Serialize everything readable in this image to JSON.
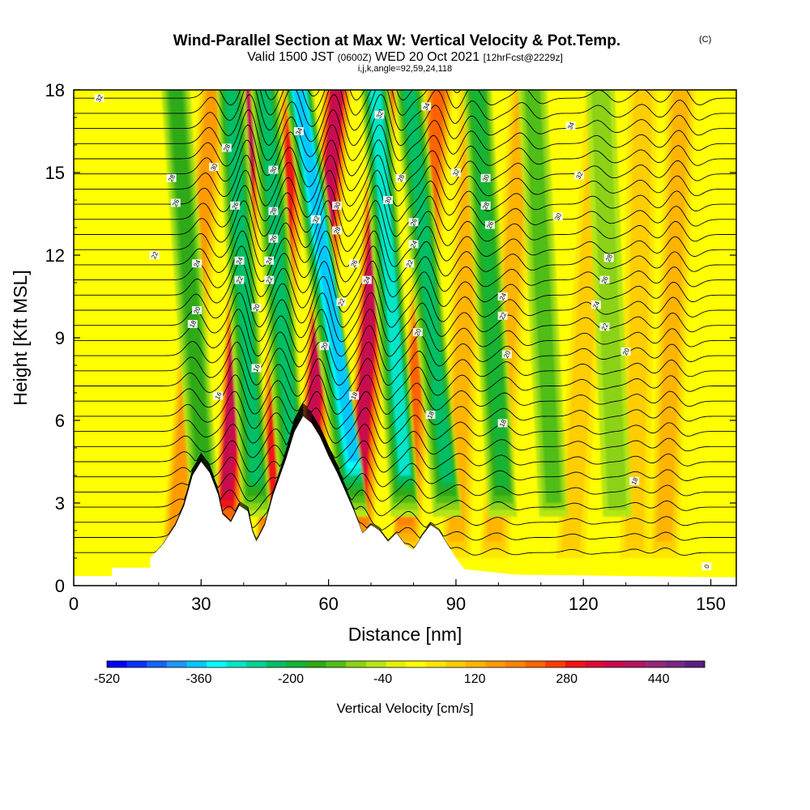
{
  "chart_data": {
    "type": "heatmap",
    "title": "Wind-Parallel Section at Max W: Vertical Velocity & Pot.Temp.",
    "title_mark": "(C)",
    "subtitle_main": "Valid 1500 JST",
    "subtitle_utc": "(0600Z)",
    "subtitle_date": "WED 20 Oct 2021",
    "subtitle_fcst": "[12hrFcst@2229z]",
    "subtitle2": "i,j,k,angle=92,59,24,118",
    "xlabel": "Distance [nm]",
    "ylabel": "Height [Kft MSL]",
    "xlim": [
      0,
      156
    ],
    "ylim": [
      0,
      18
    ],
    "xticks": [
      "0",
      "30",
      "60",
      "90",
      "120",
      "150"
    ],
    "yticks": [
      "0",
      "3",
      "6",
      "9",
      "12",
      "15",
      "18"
    ],
    "colorbar": {
      "label": "Vertical Velocity [cm/s]",
      "min": -520,
      "max": 520,
      "step": 40,
      "tick_labels": [
        "-520",
        "-360",
        "-200",
        "-40",
        "120",
        "280",
        "440"
      ],
      "colors": [
        "#0000ff",
        "#0a32ff",
        "#1464ff",
        "#1e96ff",
        "#00c8ff",
        "#00ffff",
        "#00e6c8",
        "#00d296",
        "#00be64",
        "#14b432",
        "#2daa14",
        "#50be14",
        "#8cd214",
        "#b4e614",
        "#e6f000",
        "#ffff00",
        "#ffe600",
        "#ffcd00",
        "#ffb400",
        "#ff9b00",
        "#ff8200",
        "#ff6400",
        "#ff3c00",
        "#f01414",
        "#dc0a32",
        "#c80a50",
        "#b41464",
        "#962878",
        "#782882",
        "#5a1e82"
      ]
    },
    "terrain": [
      [
        0,
        0.35
      ],
      [
        9,
        0.35
      ],
      [
        9,
        0.65
      ],
      [
        18,
        0.65
      ],
      [
        18,
        1.0
      ],
      [
        21,
        1.5
      ],
      [
        24,
        2.2
      ],
      [
        26,
        2.9
      ],
      [
        28,
        4.0
      ],
      [
        30,
        4.5
      ],
      [
        32,
        4.1
      ],
      [
        34,
        3.3
      ],
      [
        35,
        2.6
      ],
      [
        37,
        2.3
      ],
      [
        39,
        2.9
      ],
      [
        41,
        2.7
      ],
      [
        42,
        2.0
      ],
      [
        43,
        1.6
      ],
      [
        45,
        2.2
      ],
      [
        47,
        3.3
      ],
      [
        50,
        4.6
      ],
      [
        52,
        5.6
      ],
      [
        54,
        6.15
      ],
      [
        56,
        5.9
      ],
      [
        58,
        5.4
      ],
      [
        60,
        4.7
      ],
      [
        62,
        4.1
      ],
      [
        64,
        3.4
      ],
      [
        66,
        2.7
      ],
      [
        68,
        1.9
      ],
      [
        70,
        2.2
      ],
      [
        72,
        2.0
      ],
      [
        74,
        1.6
      ],
      [
        76,
        1.9
      ],
      [
        78,
        1.5
      ],
      [
        80,
        1.3
      ],
      [
        82,
        1.8
      ],
      [
        84,
        2.2
      ],
      [
        86,
        2.0
      ],
      [
        88,
        1.5
      ],
      [
        90,
        1.0
      ],
      [
        92,
        0.6
      ],
      [
        104,
        0.4
      ],
      [
        156,
        0.3
      ]
    ],
    "updraft_bands": [
      {
        "x_bottom": 24,
        "x_top": 33,
        "w": 180
      },
      {
        "x_bottom": 36,
        "x_top": 42,
        "w": 380
      },
      {
        "x_bottom": 46,
        "x_top": 52,
        "w": 300
      },
      {
        "x_bottom": 55,
        "x_top": 62,
        "w": 380
      },
      {
        "x_bottom": 67,
        "x_top": 73,
        "w": 380
      },
      {
        "x_bottom": 78,
        "x_top": 86,
        "w": 260
      },
      {
        "x_bottom": 90,
        "x_top": 94,
        "w": 150
      },
      {
        "x_bottom": 99,
        "x_top": 106,
        "w": 120
      },
      {
        "x_bottom": 117,
        "x_top": 124,
        "w": 90
      },
      {
        "x_bottom": 132,
        "x_top": 134,
        "w": 100
      },
      {
        "x_bottom": 139,
        "x_top": 143,
        "w": 150
      }
    ],
    "downdraft_bands": [
      {
        "x_bottom": 31,
        "x_top": 24,
        "w": -160
      },
      {
        "x_bottom": 43,
        "x_top": 37,
        "w": -260
      },
      {
        "x_bottom": 52,
        "x_top": 45,
        "w": -240
      },
      {
        "x_bottom": 66,
        "x_top": 53,
        "w": -380
      },
      {
        "x_bottom": 78,
        "x_top": 71,
        "w": -300
      },
      {
        "x_bottom": 88,
        "x_top": 79,
        "w": -260
      },
      {
        "x_bottom": 101,
        "x_top": 95,
        "w": -220
      },
      {
        "x_bottom": 113,
        "x_top": 108,
        "w": -120
      },
      {
        "x_bottom": 128,
        "x_top": 124,
        "w": -90
      }
    ],
    "theta_contour_labels": [
      {
        "text": "32",
        "x": 6,
        "y": 17.7
      },
      {
        "text": "28",
        "x": 23,
        "y": 14.8
      },
      {
        "text": "26",
        "x": 24,
        "y": 13.9
      },
      {
        "text": "22",
        "x": 19,
        "y": 12.0
      },
      {
        "text": "24",
        "x": 29,
        "y": 11.7
      },
      {
        "text": "20",
        "x": 29,
        "y": 10.0
      },
      {
        "text": "18",
        "x": 28,
        "y": 9.5
      },
      {
        "text": "16",
        "x": 34,
        "y": 6.9
      },
      {
        "text": "30",
        "x": 33,
        "y": 15.2
      },
      {
        "text": "28",
        "x": 36,
        "y": 15.9
      },
      {
        "text": "26",
        "x": 38,
        "y": 13.8
      },
      {
        "text": "24",
        "x": 39,
        "y": 11.8
      },
      {
        "text": "22",
        "x": 39,
        "y": 11.1
      },
      {
        "text": "20",
        "x": 43,
        "y": 10.1
      },
      {
        "text": "16",
        "x": 43,
        "y": 7.9
      },
      {
        "text": "30",
        "x": 47,
        "y": 15.1
      },
      {
        "text": "28",
        "x": 47,
        "y": 13.6
      },
      {
        "text": "26",
        "x": 47,
        "y": 12.6
      },
      {
        "text": "24",
        "x": 46,
        "y": 11.8
      },
      {
        "text": "22",
        "x": 46,
        "y": 11.1
      },
      {
        "text": "34",
        "x": 53,
        "y": 16.5
      },
      {
        "text": "32",
        "x": 57,
        "y": 13.3
      },
      {
        "text": "30",
        "x": 62,
        "y": 13.8
      },
      {
        "text": "28",
        "x": 62,
        "y": 12.9
      },
      {
        "text": "26",
        "x": 66,
        "y": 11.7
      },
      {
        "text": "24",
        "x": 69,
        "y": 11.1
      },
      {
        "text": "22",
        "x": 63,
        "y": 10.3
      },
      {
        "text": "20",
        "x": 59,
        "y": 8.7
      },
      {
        "text": "18",
        "x": 66,
        "y": 6.9
      },
      {
        "text": "32",
        "x": 72,
        "y": 17.1
      },
      {
        "text": "30",
        "x": 74,
        "y": 14.0
      },
      {
        "text": "28",
        "x": 77,
        "y": 14.8
      },
      {
        "text": "26",
        "x": 80,
        "y": 13.2
      },
      {
        "text": "24",
        "x": 80,
        "y": 12.4
      },
      {
        "text": "22",
        "x": 79,
        "y": 11.7
      },
      {
        "text": "20",
        "x": 81,
        "y": 9.2
      },
      {
        "text": "18",
        "x": 84,
        "y": 6.2
      },
      {
        "text": "34",
        "x": 83,
        "y": 17.4
      },
      {
        "text": "32",
        "x": 90,
        "y": 15.0
      },
      {
        "text": "30",
        "x": 97,
        "y": 14.8
      },
      {
        "text": "28",
        "x": 97,
        "y": 13.8
      },
      {
        "text": "26",
        "x": 98,
        "y": 13.1
      },
      {
        "text": "24",
        "x": 101,
        "y": 10.5
      },
      {
        "text": "22",
        "x": 101,
        "y": 9.8
      },
      {
        "text": "20",
        "x": 102,
        "y": 8.4
      },
      {
        "text": "18",
        "x": 101,
        "y": 5.9
      },
      {
        "text": "34",
        "x": 117,
        "y": 16.7
      },
      {
        "text": "32",
        "x": 119,
        "y": 14.9
      },
      {
        "text": "30",
        "x": 114,
        "y": 13.4
      },
      {
        "text": "28",
        "x": 126,
        "y": 11.9
      },
      {
        "text": "26",
        "x": 125,
        "y": 11.1
      },
      {
        "text": "24",
        "x": 123,
        "y": 10.2
      },
      {
        "text": "22",
        "x": 125,
        "y": 9.4
      },
      {
        "text": "20",
        "x": 130,
        "y": 8.5
      },
      {
        "text": "18",
        "x": 132,
        "y": 3.8
      },
      {
        "text": "0",
        "x": 149,
        "y": 0.7
      }
    ]
  }
}
